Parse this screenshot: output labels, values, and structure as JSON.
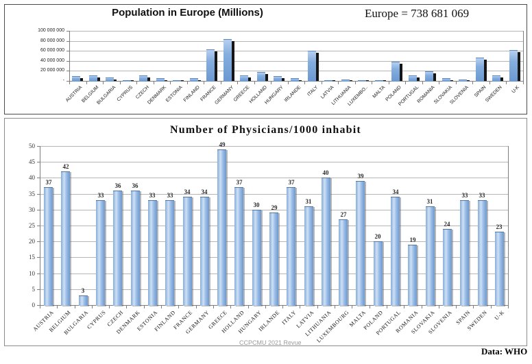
{
  "chart_data": [
    {
      "id": "population",
      "type": "bar",
      "title": "Population in Europe (Millions)",
      "annotation": "Europe = 738 681 069",
      "categories": [
        "AUSTRIA",
        "BELGIUM",
        "BULGARIA",
        "CYPRUS",
        "CZECH",
        "DENMARK",
        "ESTONIA",
        "FINLAND",
        "FRANCE",
        "GERMANY",
        "GREECE",
        "HOLLAND",
        "HUNGARY",
        "IRLANDE",
        "ITALY",
        "LATVIA",
        "LITHUANIA",
        "LUXEMBO..",
        "MALTA",
        "POLAND",
        "PORTUGAL",
        "ROMANIA",
        "SLOVAKIA",
        "SLOVENIA",
        "SPAIN",
        "SWEDEN",
        "U-K"
      ],
      "values_millions": [
        9,
        11.5,
        7,
        1.2,
        10.7,
        5.8,
        1.3,
        5.5,
        63,
        83,
        10.7,
        17.5,
        9.8,
        5,
        60,
        1.9,
        2.8,
        0.6,
        0.5,
        38,
        10.3,
        19.3,
        5.5,
        2.1,
        47,
        10.4,
        62
      ],
      "values_estimated": true,
      "ylim_millions": [
        0,
        100
      ],
      "ytick_labels": [
        "100 000 000",
        "80 000 000",
        "60 000 000",
        "40 000 000",
        "20 000 000",
        "-"
      ],
      "ytick_values_millions": [
        100,
        80,
        60,
        40,
        20,
        0
      ],
      "grid": true,
      "legend": "none",
      "colors": {
        "bar": "#8db4e2",
        "bar_shadow": "#161616"
      }
    },
    {
      "id": "physicians",
      "type": "bar",
      "title": "Number of Physicians/1000 inhabit",
      "categories": [
        "AUSTRIA",
        "BELGIUM",
        "BULGARIA",
        "CYPRUS",
        "CZECH",
        "DENMARK",
        "ESTONIA",
        "FINLAND",
        "FRANCE",
        "GERMANY",
        "GREECE",
        "HOLLAND",
        "HUNGARY",
        "IRLANDE",
        "ITALY",
        "LATVIA",
        "LITHUANIA",
        "LUXEMBOURG",
        "MALTA",
        "POLAND",
        "PORTUGAL",
        "ROMANIA",
        "SLOVAKIA",
        "SLOVENIA",
        "SPAIN",
        "SWEDEN",
        "U-K"
      ],
      "values": [
        37,
        42,
        3,
        33,
        36,
        36,
        33,
        33,
        34,
        34,
        49,
        37,
        30,
        29,
        37,
        31,
        40,
        27,
        39,
        20,
        34,
        19,
        31,
        24,
        33,
        33,
        23
      ],
      "ylim": [
        0,
        50
      ],
      "ytick_step": 5,
      "data_labels": true,
      "grid": true,
      "legend": "none",
      "watermark": "CCPCMU 2021 Revue",
      "colors": {
        "bar": "#8db4e2"
      }
    }
  ],
  "footer": {
    "source_note": "Data: WHO"
  }
}
